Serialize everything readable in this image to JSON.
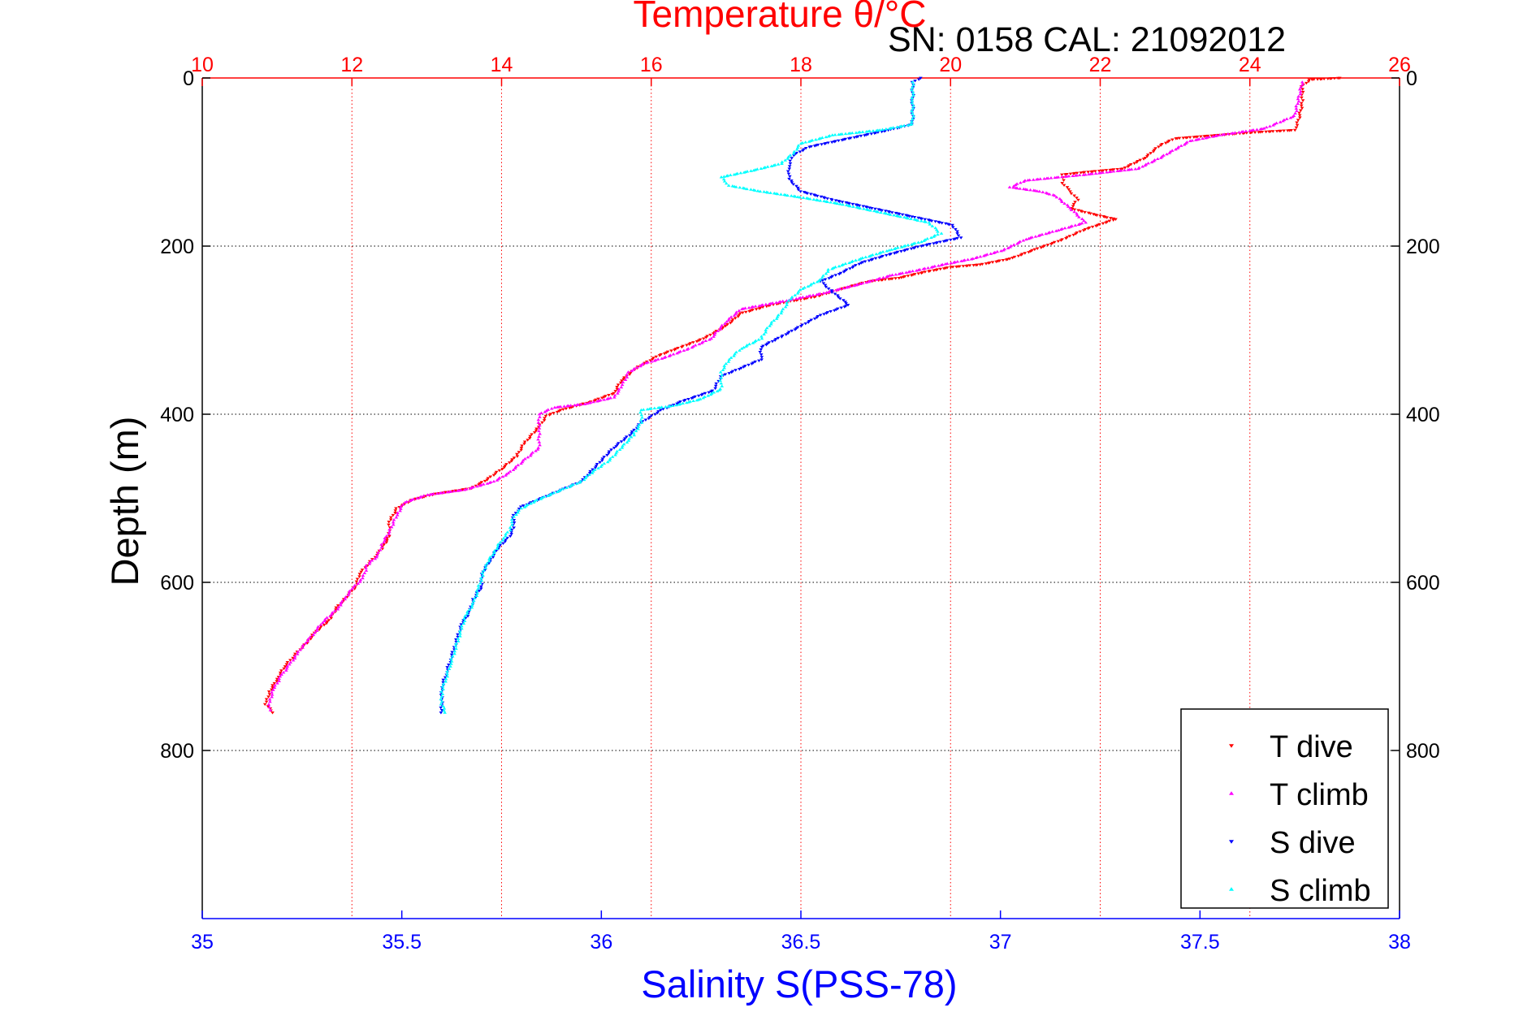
{
  "chart_data": {
    "type": "scatter",
    "title": "Temperature θ/°C",
    "subtitle": "SN: 0158  CAL: 21092012",
    "xlabel_bottom": "Salinity S(PSS-78)",
    "ylabel": "Depth (m)",
    "xlim_top": [
      10,
      26
    ],
    "xticks_top": [
      "10",
      "12",
      "14",
      "16",
      "18",
      "20",
      "22",
      "24",
      "26"
    ],
    "xlim_bottom": [
      35,
      38
    ],
    "xticks_bottom": [
      "35",
      "35.5",
      "36",
      "36.5",
      "37",
      "37.5",
      "38"
    ],
    "ylim": [
      0,
      1000
    ],
    "yticks": [
      "0",
      "200",
      "400",
      "600",
      "800"
    ],
    "y_reversed": true,
    "grid_vertical_top": true,
    "grid_horizontal": true,
    "legend_position": "bottom-right",
    "series": [
      {
        "name": "T dive",
        "axis": "top",
        "color": "#ff0000",
        "marker": "triangle-down",
        "points": [
          [
            25.2,
            0
          ],
          [
            24.8,
            2
          ],
          [
            24.7,
            10
          ],
          [
            24.7,
            30
          ],
          [
            24.65,
            50
          ],
          [
            24.6,
            62
          ],
          [
            24.0,
            65
          ],
          [
            23.0,
            72
          ],
          [
            22.8,
            80
          ],
          [
            22.6,
            95
          ],
          [
            22.3,
            108
          ],
          [
            21.8,
            112
          ],
          [
            21.5,
            115
          ],
          [
            21.5,
            125
          ],
          [
            21.6,
            135
          ],
          [
            21.7,
            145
          ],
          [
            21.6,
            155
          ],
          [
            21.9,
            162
          ],
          [
            22.2,
            168
          ],
          [
            21.8,
            180
          ],
          [
            21.5,
            192
          ],
          [
            21.1,
            205
          ],
          [
            20.8,
            215
          ],
          [
            20.4,
            222
          ],
          [
            20.0,
            225
          ],
          [
            19.7,
            230
          ],
          [
            19.3,
            238
          ],
          [
            18.9,
            242
          ],
          [
            18.5,
            252
          ],
          [
            18.2,
            260
          ],
          [
            17.6,
            270
          ],
          [
            17.2,
            280
          ],
          [
            17.0,
            295
          ],
          [
            16.7,
            310
          ],
          [
            16.4,
            320
          ],
          [
            16.1,
            330
          ],
          [
            15.8,
            345
          ],
          [
            15.6,
            360
          ],
          [
            15.5,
            375
          ],
          [
            15.2,
            385
          ],
          [
            14.8,
            395
          ],
          [
            14.6,
            402
          ],
          [
            14.5,
            415
          ],
          [
            14.3,
            435
          ],
          [
            14.2,
            450
          ],
          [
            14.0,
            465
          ],
          [
            13.8,
            478
          ],
          [
            13.6,
            488
          ],
          [
            13.1,
            495
          ],
          [
            12.8,
            502
          ],
          [
            12.6,
            512
          ],
          [
            12.5,
            528
          ],
          [
            12.5,
            545
          ],
          [
            12.4,
            560
          ],
          [
            12.3,
            570
          ],
          [
            12.2,
            580
          ],
          [
            12.1,
            590
          ],
          [
            12.05,
            605
          ],
          [
            11.9,
            620
          ],
          [
            11.8,
            630
          ],
          [
            11.7,
            645
          ],
          [
            11.5,
            660
          ],
          [
            11.4,
            672
          ],
          [
            11.3,
            680
          ],
          [
            11.2,
            690
          ],
          [
            11.1,
            700
          ],
          [
            11.0,
            715
          ],
          [
            10.9,
            730
          ],
          [
            10.85,
            745
          ],
          [
            10.95,
            755
          ]
        ]
      },
      {
        "name": "T climb",
        "axis": "top",
        "color": "#ff00ff",
        "marker": "triangle-up",
        "points": [
          [
            24.7,
            5
          ],
          [
            24.65,
            25
          ],
          [
            24.6,
            45
          ],
          [
            24.2,
            60
          ],
          [
            23.6,
            68
          ],
          [
            23.2,
            75
          ],
          [
            23.0,
            85
          ],
          [
            22.8,
            95
          ],
          [
            22.5,
            108
          ],
          [
            21.8,
            115
          ],
          [
            21.0,
            122
          ],
          [
            20.8,
            130
          ],
          [
            21.2,
            135
          ],
          [
            21.4,
            140
          ],
          [
            21.6,
            155
          ],
          [
            21.8,
            172
          ],
          [
            21.4,
            182
          ],
          [
            21.0,
            192
          ],
          [
            20.7,
            205
          ],
          [
            20.3,
            215
          ],
          [
            19.9,
            222
          ],
          [
            19.6,
            228
          ],
          [
            19.2,
            235
          ],
          [
            18.8,
            245
          ],
          [
            18.3,
            256
          ],
          [
            17.8,
            265
          ],
          [
            17.2,
            275
          ],
          [
            17.0,
            290
          ],
          [
            16.8,
            310
          ],
          [
            16.5,
            322
          ],
          [
            16.2,
            332
          ],
          [
            15.9,
            340
          ],
          [
            15.7,
            350
          ],
          [
            15.6,
            368
          ],
          [
            15.5,
            380
          ],
          [
            15.1,
            388
          ],
          [
            14.7,
            392
          ],
          [
            14.5,
            400
          ],
          [
            14.5,
            420
          ],
          [
            14.5,
            440
          ],
          [
            14.3,
            455
          ],
          [
            14.1,
            470
          ],
          [
            13.9,
            480
          ],
          [
            13.5,
            490
          ],
          [
            13.0,
            496
          ],
          [
            12.7,
            505
          ],
          [
            12.6,
            520
          ],
          [
            12.5,
            540
          ],
          [
            12.4,
            555
          ],
          [
            12.35,
            568
          ],
          [
            12.2,
            580
          ],
          [
            12.15,
            595
          ],
          [
            12.0,
            608
          ],
          [
            11.9,
            620
          ],
          [
            11.8,
            632
          ],
          [
            11.6,
            648
          ],
          [
            11.5,
            660
          ],
          [
            11.35,
            675
          ],
          [
            11.25,
            688
          ],
          [
            11.15,
            700
          ],
          [
            11.05,
            712
          ],
          [
            10.95,
            728
          ],
          [
            10.9,
            742
          ],
          [
            10.9,
            752
          ]
        ]
      },
      {
        "name": "S dive",
        "axis": "bottom",
        "color": "#0000ff",
        "marker": "triangle-down",
        "points": [
          [
            36.8,
            0
          ],
          [
            36.78,
            5
          ],
          [
            36.78,
            30
          ],
          [
            36.78,
            55
          ],
          [
            36.72,
            62
          ],
          [
            36.62,
            72
          ],
          [
            36.52,
            82
          ],
          [
            36.48,
            92
          ],
          [
            36.47,
            105
          ],
          [
            36.47,
            120
          ],
          [
            36.5,
            135
          ],
          [
            36.58,
            145
          ],
          [
            36.68,
            155
          ],
          [
            36.78,
            165
          ],
          [
            36.88,
            175
          ],
          [
            36.9,
            190
          ],
          [
            36.8,
            200
          ],
          [
            36.72,
            210
          ],
          [
            36.65,
            220
          ],
          [
            36.6,
            232
          ],
          [
            36.55,
            242
          ],
          [
            36.58,
            255
          ],
          [
            36.62,
            270
          ],
          [
            36.55,
            282
          ],
          [
            36.5,
            295
          ],
          [
            36.45,
            308
          ],
          [
            36.4,
            320
          ],
          [
            36.4,
            335
          ],
          [
            36.35,
            345
          ],
          [
            36.3,
            355
          ],
          [
            36.28,
            372
          ],
          [
            36.2,
            385
          ],
          [
            36.15,
            395
          ],
          [
            36.1,
            410
          ],
          [
            36.07,
            425
          ],
          [
            36.03,
            440
          ],
          [
            36.0,
            455
          ],
          [
            35.97,
            470
          ],
          [
            35.95,
            480
          ],
          [
            35.9,
            490
          ],
          [
            35.85,
            500
          ],
          [
            35.8,
            510
          ],
          [
            35.78,
            520
          ],
          [
            35.78,
            535
          ],
          [
            35.77,
            545
          ],
          [
            35.74,
            560
          ],
          [
            35.72,
            575
          ],
          [
            35.7,
            590
          ],
          [
            35.7,
            605
          ],
          [
            35.68,
            620
          ],
          [
            35.67,
            635
          ],
          [
            35.65,
            650
          ],
          [
            35.64,
            665
          ],
          [
            35.63,
            680
          ],
          [
            35.62,
            695
          ],
          [
            35.61,
            710
          ],
          [
            35.6,
            725
          ],
          [
            35.6,
            740
          ],
          [
            35.6,
            755
          ]
        ]
      },
      {
        "name": "S climb",
        "axis": "bottom",
        "color": "#00ffff",
        "marker": "triangle-up",
        "points": [
          [
            36.78,
            5
          ],
          [
            36.78,
            30
          ],
          [
            36.78,
            55
          ],
          [
            36.7,
            62
          ],
          [
            36.58,
            68
          ],
          [
            36.5,
            78
          ],
          [
            36.48,
            90
          ],
          [
            36.45,
            102
          ],
          [
            36.38,
            110
          ],
          [
            36.3,
            118
          ],
          [
            36.32,
            128
          ],
          [
            36.4,
            135
          ],
          [
            36.5,
            142
          ],
          [
            36.6,
            150
          ],
          [
            36.72,
            162
          ],
          [
            36.82,
            172
          ],
          [
            36.85,
            185
          ],
          [
            36.8,
            195
          ],
          [
            36.72,
            205
          ],
          [
            36.65,
            215
          ],
          [
            36.57,
            228
          ],
          [
            36.55,
            240
          ],
          [
            36.5,
            252
          ],
          [
            36.47,
            265
          ],
          [
            36.45,
            280
          ],
          [
            36.42,
            295
          ],
          [
            36.4,
            310
          ],
          [
            36.35,
            322
          ],
          [
            36.32,
            335
          ],
          [
            36.3,
            350
          ],
          [
            36.3,
            370
          ],
          [
            36.25,
            382
          ],
          [
            36.18,
            390
          ],
          [
            36.1,
            395
          ],
          [
            36.1,
            410
          ],
          [
            36.08,
            425
          ],
          [
            36.05,
            440
          ],
          [
            36.02,
            455
          ],
          [
            35.98,
            468
          ],
          [
            35.95,
            480
          ],
          [
            35.9,
            490
          ],
          [
            35.84,
            502
          ],
          [
            35.8,
            512
          ],
          [
            35.78,
            522
          ],
          [
            35.77,
            538
          ],
          [
            35.75,
            550
          ],
          [
            35.73,
            565
          ],
          [
            35.71,
            580
          ],
          [
            35.7,
            595
          ],
          [
            35.69,
            610
          ],
          [
            35.68,
            625
          ],
          [
            35.66,
            640
          ],
          [
            35.65,
            655
          ],
          [
            35.64,
            670
          ],
          [
            35.63,
            685
          ],
          [
            35.62,
            700
          ],
          [
            35.61,
            715
          ],
          [
            35.6,
            730
          ],
          [
            35.6,
            745
          ],
          [
            35.61,
            755
          ]
        ]
      }
    ]
  }
}
